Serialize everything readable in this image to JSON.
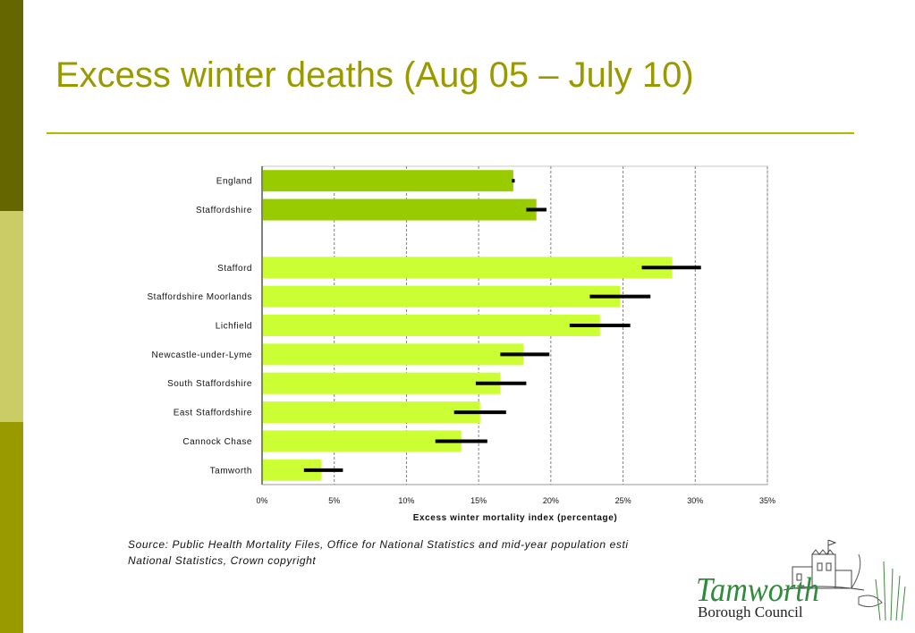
{
  "slide": {
    "title": "Excess winter deaths (Aug 05 – July 10)",
    "source_line1": "Source: Public Health Mortality Files, Office for National Statistics and mid-year population esti",
    "source_line2": "National Statistics, Crown copyright",
    "logo_line1": "Tamworth",
    "logo_line2": "Borough Council",
    "colors": {
      "title": "#999900",
      "rule": "#b5b500",
      "sidebar": [
        "#666600",
        "#cccc66",
        "#999900"
      ],
      "logo_text": "#2e8b3a"
    }
  },
  "chart_data": {
    "type": "bar",
    "orientation": "horizontal",
    "categories": [
      "England",
      "Staffordshire",
      "Stafford",
      "Staffordshire Moorlands",
      "Lichfield",
      "Newcastle-under-Lyme",
      "South Staffordshire",
      "East Staffordshire",
      "Cannock Chase",
      "Tamworth"
    ],
    "values": [
      17.4,
      19.0,
      28.4,
      24.8,
      23.4,
      18.1,
      16.5,
      15.1,
      13.8,
      4.1
    ],
    "error_low": [
      17.3,
      18.3,
      26.3,
      22.7,
      21.3,
      16.5,
      14.8,
      13.3,
      12.0,
      2.9
    ],
    "error_high": [
      17.5,
      19.7,
      30.4,
      26.9,
      25.5,
      19.9,
      18.3,
      16.9,
      15.6,
      5.6
    ],
    "bar_colors": [
      "#99cc00",
      "#99cc00",
      "#ccff33",
      "#ccff33",
      "#ccff33",
      "#ccff33",
      "#ccff33",
      "#ccff33",
      "#ccff33",
      "#ccff33"
    ],
    "xlabel": "Excess winter mortality index (percentage)",
    "ylabel": "",
    "xlim": [
      0,
      35
    ],
    "xticks": [
      "0%",
      "5%",
      "10%",
      "15%",
      "20%",
      "25%",
      "30%",
      "35%"
    ],
    "grid": "vertical dashed"
  }
}
